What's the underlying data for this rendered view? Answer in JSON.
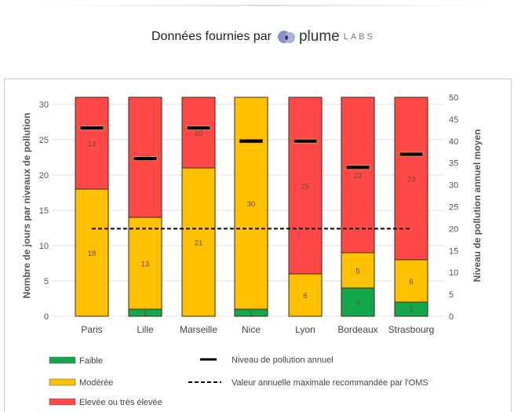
{
  "header": {
    "credit_text": "Données fournies par",
    "logo_word": "plume",
    "logo_suffix": "LABS"
  },
  "chart_data": {
    "type": "bar",
    "stacked": true,
    "categories": [
      "Paris",
      "Lille",
      "Marseille",
      "Nice",
      "Lyon",
      "Bordeaux",
      "Strasbourg"
    ],
    "series": [
      {
        "name": "Faible",
        "color": "#14a84a",
        "values": [
          0,
          1,
          0,
          1,
          0,
          4,
          2
        ]
      },
      {
        "name": "Modérée",
        "color": "#ffc000",
        "values": [
          18,
          13,
          21,
          30,
          6,
          5,
          6
        ]
      },
      {
        "name": "Elevée ou très élevée",
        "color": "#ff4848",
        "values": [
          13,
          17,
          10,
          0,
          25,
          22,
          23
        ]
      }
    ],
    "line_series": [
      {
        "name": "Niveau de pollution annuel",
        "axis": "right",
        "style": "marker-dash",
        "color": "#000000",
        "values": [
          43,
          36,
          43,
          40,
          40,
          34,
          37
        ]
      },
      {
        "name": "Valeur annuelle maximale recommandée par l'OMS",
        "axis": "right",
        "style": "dashed",
        "color": "#000000",
        "value": 20
      }
    ],
    "ylabel": "Nombre de jours par niveaux de pollution",
    "ylabel_right": "Niveau de pollution annuel moyen",
    "ylim": [
      0,
      30
    ],
    "yticks": [
      0,
      5,
      10,
      15,
      20,
      25,
      30
    ],
    "ylim_right": [
      0,
      50
    ],
    "yticks_right": [
      0,
      5,
      10,
      15,
      20,
      25,
      30,
      35,
      40,
      45,
      50
    ],
    "grid": true,
    "legend_position": "bottom"
  }
}
